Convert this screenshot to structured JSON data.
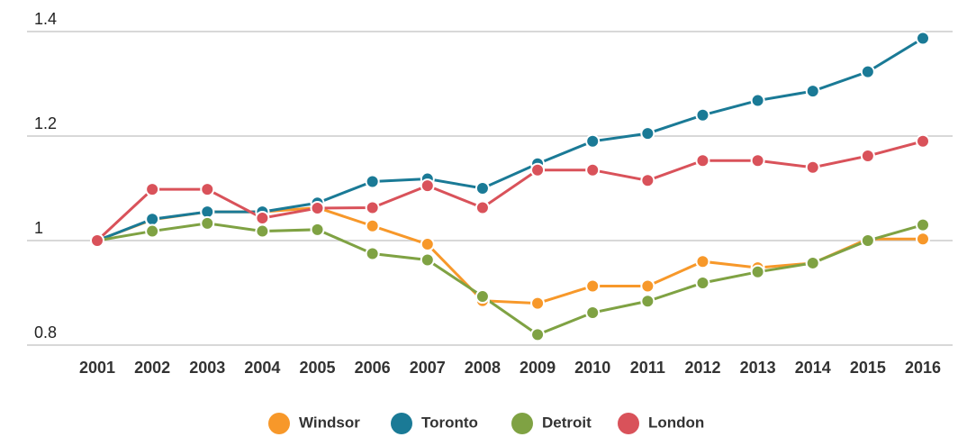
{
  "chart_data": {
    "type": "line",
    "x": [
      "2001",
      "2002",
      "2003",
      "2004",
      "2005",
      "2006",
      "2007",
      "2008",
      "2009",
      "2010",
      "2011",
      "2012",
      "2013",
      "2014",
      "2015",
      "2016"
    ],
    "series": [
      {
        "name": "Windsor",
        "color": "#f7982a",
        "values": [
          1.0,
          1.04,
          1.055,
          1.055,
          1.063,
          1.028,
          0.993,
          0.885,
          0.88,
          0.913,
          0.913,
          0.96,
          0.948,
          0.957,
          1.003,
          1.003
        ]
      },
      {
        "name": "Toronto",
        "color": "#1a7a96",
        "values": [
          1.0,
          1.041,
          1.055,
          1.055,
          1.072,
          1.113,
          1.118,
          1.1,
          1.147,
          1.19,
          1.205,
          1.24,
          1.268,
          1.286,
          1.323,
          1.387
        ]
      },
      {
        "name": "Detroit",
        "color": "#7fa243",
        "values": [
          1.0,
          1.018,
          1.033,
          1.018,
          1.021,
          0.975,
          0.963,
          0.893,
          0.82,
          0.862,
          0.884,
          0.919,
          0.94,
          0.957,
          1.0,
          1.03
        ]
      },
      {
        "name": "London",
        "color": "#d9525a",
        "values": [
          1.0,
          1.098,
          1.098,
          1.043,
          1.062,
          1.063,
          1.105,
          1.063,
          1.135,
          1.135,
          1.115,
          1.153,
          1.153,
          1.14,
          1.162,
          1.19
        ]
      }
    ],
    "ylim": [
      0.8,
      1.4
    ],
    "yticks": [
      0.8,
      1,
      1.2,
      1.4
    ],
    "grid": true,
    "legend": "bottom"
  }
}
